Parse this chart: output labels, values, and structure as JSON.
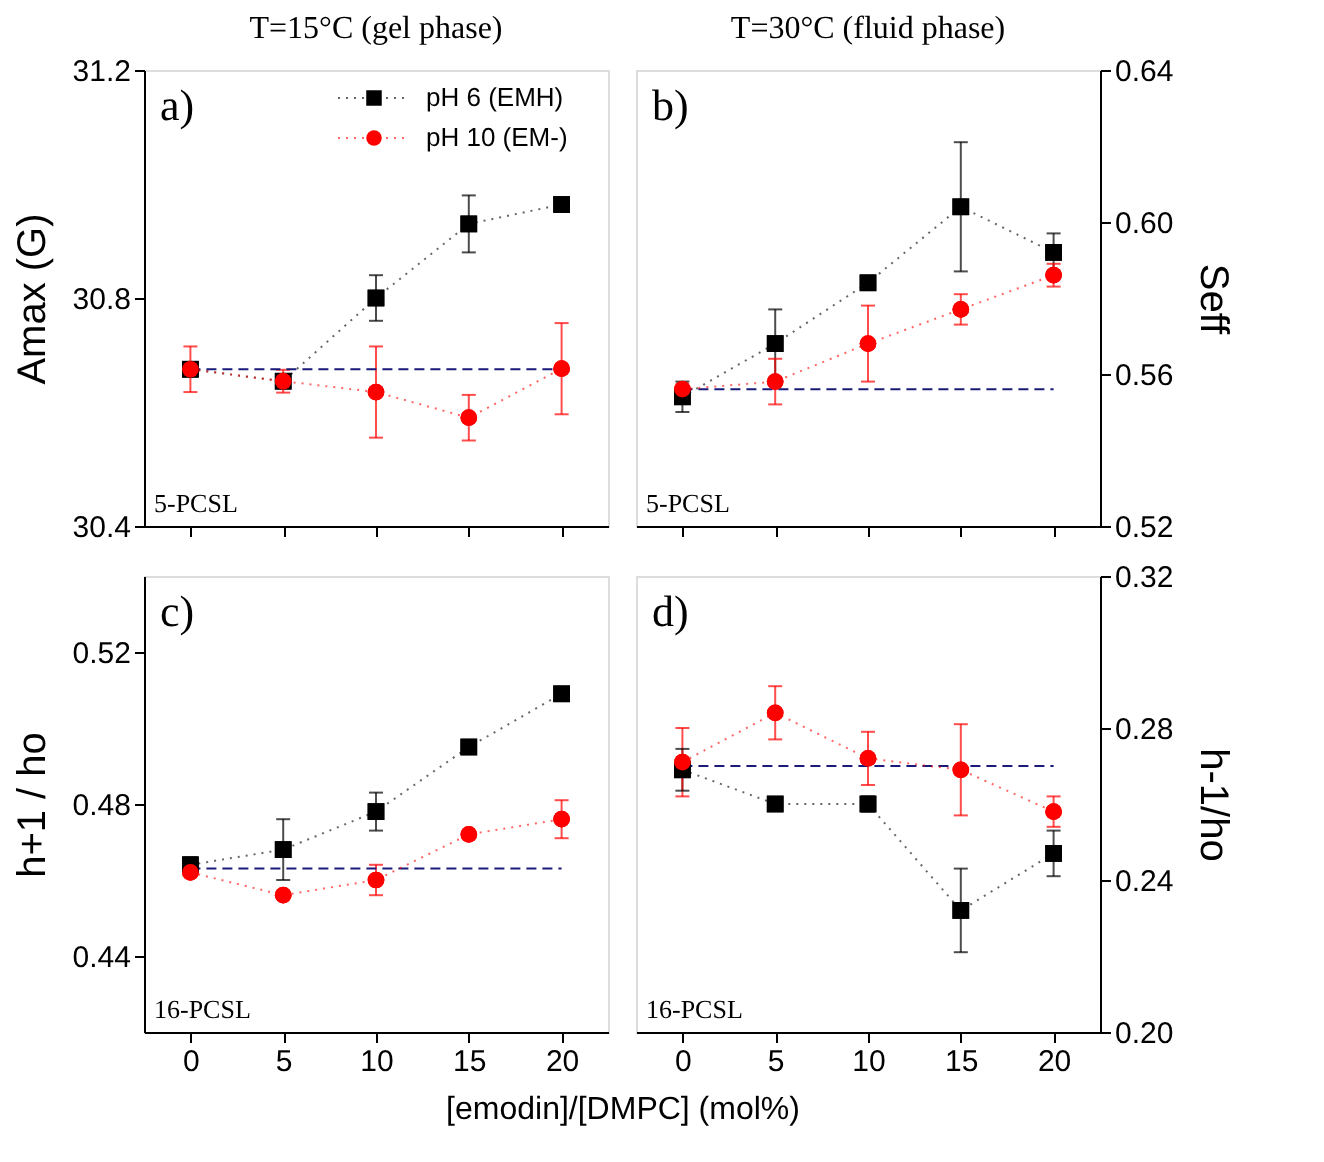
{
  "chart_data": [
    {
      "type": "line",
      "title": "T=15°C (gel phase)",
      "ylabel": "Amax (G)",
      "x": [
        0,
        5,
        10,
        15,
        20
      ],
      "xlim": [
        -2.5,
        22.5
      ],
      "xticks": [
        0,
        5,
        10,
        15,
        20
      ],
      "ylim": [
        30.4,
        31.2
      ],
      "yticks": [
        30.4,
        30.8,
        31.2
      ],
      "tick_labels": "y",
      "legend": "top right",
      "grid": false,
      "line_style": "dotted",
      "annotations": [
        "a)",
        "5-PCSL"
      ],
      "ref_lines": [
        {
          "axis": "y",
          "value": 30.675,
          "color": "#1a1a7a",
          "line_style": "dashed"
        }
      ],
      "series": [
        {
          "name": "pH 6 (EMH)",
          "color": "#000000",
          "marker": "square",
          "values": [
            30.675,
            30.654,
            30.8,
            30.93,
            30.964
          ],
          "errors": [
            null,
            null,
            0.04,
            0.05,
            0.01
          ]
        },
        {
          "name": "pH 10 (EM-)",
          "color": "#ff0000",
          "marker": "circle",
          "values": [
            30.675,
            30.654,
            30.635,
            30.59,
            30.676
          ],
          "errors": [
            0.04,
            0.02,
            0.08,
            0.04,
            0.08
          ]
        }
      ]
    },
    {
      "type": "line",
      "title": "T=30°C (fluid phase)",
      "ylabel": "Seff",
      "x": [
        0,
        5,
        10,
        15,
        20
      ],
      "xlim": [
        -2.5,
        22.5
      ],
      "xticks": [
        0,
        5,
        10,
        15,
        20
      ],
      "ylim": [
        0.52,
        0.64
      ],
      "yticks": [
        0.52,
        0.56,
        {
          "value": 0.6,
          "label": "0.60"
        },
        0.64
      ],
      "tick_labels": "y",
      "grid": false,
      "line_style": "dotted",
      "annotations": [
        "b)",
        "5-PCSL"
      ],
      "ref_lines": [
        {
          "axis": "y",
          "value": 0.556,
          "color": "#1a1a7a",
          "line_style": "dashed"
        }
      ],
      "series": [
        {
          "color": "#000000",
          "marker": "square",
          "values": [
            0.554,
            0.568,
            0.584,
            0.604,
            0.592
          ],
          "errors": [
            0.004,
            0.009,
            null,
            0.017,
            0.005
          ]
        },
        {
          "color": "#ff0000",
          "marker": "circle",
          "values": [
            0.556,
            0.558,
            0.568,
            0.577,
            0.586
          ],
          "errors": [
            null,
            0.006,
            0.01,
            0.004,
            0.003
          ]
        }
      ]
    },
    {
      "type": "line",
      "ylabel": "h+1 / ho",
      "xlabel": "[emodin]/[DMPC]  (mol%)",
      "x": [
        0,
        5,
        10,
        15,
        20
      ],
      "xlim": [
        -2.5,
        22.5
      ],
      "xticks": [
        0,
        5,
        10,
        15,
        20
      ],
      "ylim": [
        0.42,
        0.54
      ],
      "yticks": [
        0.44,
        0.48,
        0.52
      ],
      "grid": false,
      "line_style": "dotted",
      "annotations": [
        "c)",
        "16-PCSL"
      ],
      "ref_lines": [
        {
          "axis": "y",
          "value": 0.463,
          "color": "#1a1a7a",
          "line_style": "dashed"
        }
      ],
      "series": [
        {
          "color": "#000000",
          "marker": "square",
          "values": [
            0.464,
            0.468,
            0.478,
            0.495,
            0.509
          ],
          "errors": [
            0.002,
            0.008,
            0.005,
            null,
            null
          ]
        },
        {
          "color": "#ff0000",
          "marker": "circle",
          "values": [
            0.462,
            0.456,
            0.46,
            0.472,
            0.476
          ],
          "errors": [
            null,
            null,
            0.004,
            null,
            0.005
          ]
        }
      ]
    },
    {
      "type": "line",
      "ylabel": "h-1/ho",
      "x": [
        0,
        5,
        10,
        15,
        20
      ],
      "xlim": [
        -2.5,
        22.5
      ],
      "xticks": [
        0,
        5,
        10,
        15,
        20
      ],
      "ylim": [
        0.2,
        0.32
      ],
      "yticks": [
        {
          "value": 0.2,
          "label": "0.20"
        },
        0.24,
        0.28,
        0.32
      ],
      "grid": false,
      "line_style": "dotted",
      "annotations": [
        "d)",
        "16-PCSL"
      ],
      "ref_lines": [
        {
          "axis": "y",
          "value": 0.27,
          "color": "#1a1a7a",
          "line_style": "dashed"
        }
      ],
      "series": [
        {
          "color": "#000000",
          "marker": "square",
          "values": [
            0.269,
            0.26,
            0.26,
            0.232,
            0.247
          ],
          "errors": [
            0.0055,
            null,
            0.002,
            0.011,
            0.006
          ]
        },
        {
          "color": "#ff0000",
          "marker": "circle",
          "values": [
            0.271,
            0.284,
            0.272,
            0.269,
            0.258
          ],
          "errors": [
            0.009,
            0.007,
            0.007,
            0.012,
            0.004
          ]
        }
      ]
    }
  ]
}
